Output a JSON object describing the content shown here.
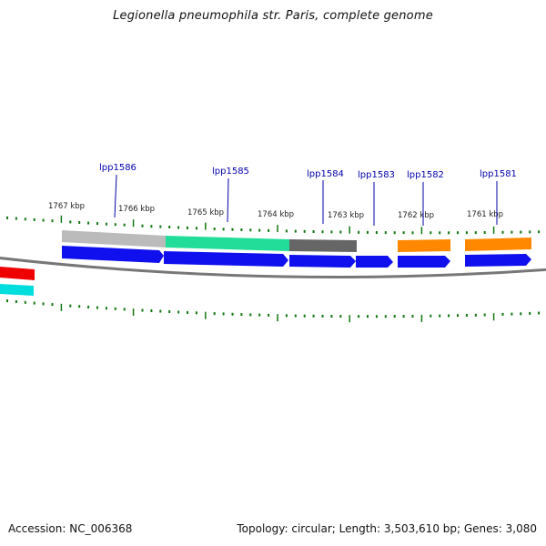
{
  "title": "Legionella pneumophila str. Paris, complete genome",
  "footer": {
    "accession": "Accession: NC_006368",
    "summary": "Topology: circular; Length: 3,503,610 bp; Genes: 3,080"
  },
  "colors": {
    "backbone": "#777777",
    "tick": "#117711",
    "cds": "#1010ee",
    "label": "#0000aa",
    "gray_light": "#bbbbbb",
    "teal": "#22dd99",
    "gray_dark": "#666666",
    "orange": "#ff8800",
    "red": "#ee0000",
    "cyan": "#00dddd"
  },
  "kbp_labels": [
    "1767 kbp",
    "1766 kbp",
    "1765 kbp",
    "1764 kbp",
    "1763 kbp",
    "1762 kbp",
    "1761 kbp"
  ],
  "gene_labels": [
    "lpp1586",
    "lpp1585",
    "lpp1584",
    "lpp1583",
    "lpp1582",
    "lpp1581"
  ]
}
